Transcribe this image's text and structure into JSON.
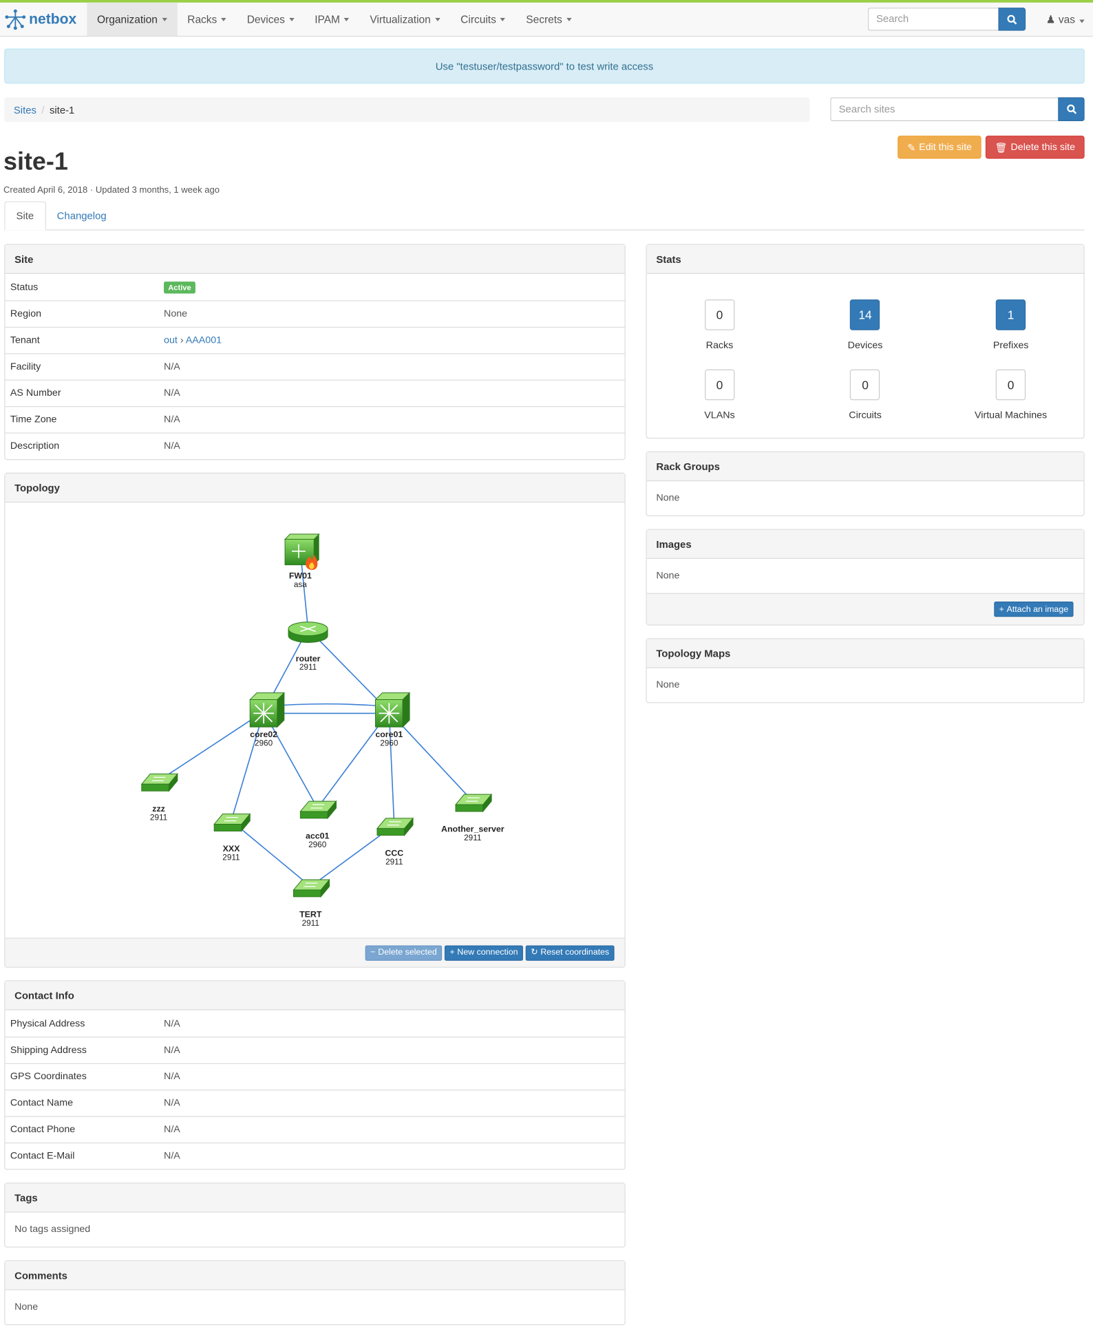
{
  "nav": {
    "brand": "netbox",
    "items": [
      "Organization",
      "Racks",
      "Devices",
      "IPAM",
      "Virtualization",
      "Circuits",
      "Secrets"
    ],
    "search_placeholder": "Search",
    "user": "vas"
  },
  "alert": "Use \"testuser/testpassword\" to test write access",
  "breadcrumb": {
    "root": "Sites",
    "current": "site-1"
  },
  "site_search_placeholder": "Search sites",
  "title": "site-1",
  "created": "Created April 6, 2018 · Updated 3 months, 1 week ago",
  "actions": {
    "edit": "Edit this site",
    "delete": "Delete this site"
  },
  "tabs": [
    "Site",
    "Changelog"
  ],
  "site": {
    "header": "Site",
    "rows": [
      {
        "k": "Status",
        "v": "Active"
      },
      {
        "k": "Region",
        "v": "None"
      },
      {
        "k": "Tenant",
        "v1": "out",
        "v2": "AAA001"
      },
      {
        "k": "Facility",
        "v": "N/A"
      },
      {
        "k": "AS Number",
        "v": "N/A"
      },
      {
        "k": "Time Zone",
        "v": "N/A"
      },
      {
        "k": "Description",
        "v": "N/A"
      }
    ]
  },
  "topology": {
    "header": "Topology",
    "nodes": [
      {
        "name": "FW01",
        "model": "asa"
      },
      {
        "name": "router",
        "model": "2911"
      },
      {
        "name": "core02",
        "model": "2960"
      },
      {
        "name": "core01",
        "model": "2960"
      },
      {
        "name": "zzz",
        "model": "2911"
      },
      {
        "name": "XXX",
        "model": "2911"
      },
      {
        "name": "acc01",
        "model": "2960"
      },
      {
        "name": "CCC",
        "model": "2911"
      },
      {
        "name": "Another_server",
        "model": "2911"
      },
      {
        "name": "TERT",
        "model": "2911"
      }
    ],
    "buttons": {
      "delete": "Delete selected",
      "connect": "New connection",
      "reset": "Reset coordinates"
    }
  },
  "contact": {
    "header": "Contact Info",
    "rows": [
      {
        "k": "Physical Address",
        "v": "N/A"
      },
      {
        "k": "Shipping Address",
        "v": "N/A"
      },
      {
        "k": "GPS Coordinates",
        "v": "N/A"
      },
      {
        "k": "Contact Name",
        "v": "N/A"
      },
      {
        "k": "Contact Phone",
        "v": "N/A"
      },
      {
        "k": "Contact E-Mail",
        "v": "N/A"
      }
    ]
  },
  "tags": {
    "header": "Tags",
    "body": "No tags assigned"
  },
  "comments": {
    "header": "Comments",
    "body": "None"
  },
  "stats": {
    "header": "Stats",
    "items": [
      {
        "value": "0",
        "label": "Racks",
        "highlight": false
      },
      {
        "value": "14",
        "label": "Devices",
        "highlight": true
      },
      {
        "value": "1",
        "label": "Prefixes",
        "highlight": true
      },
      {
        "value": "0",
        "label": "VLANs",
        "highlight": false
      },
      {
        "value": "0",
        "label": "Circuits",
        "highlight": false
      },
      {
        "value": "0",
        "label": "Virtual Machines",
        "highlight": false
      }
    ]
  },
  "rack_groups": {
    "header": "Rack Groups",
    "body": "None"
  },
  "images": {
    "header": "Images",
    "body": "None",
    "button": "Attach an image"
  },
  "topology_maps": {
    "header": "Topology Maps",
    "body": "None"
  },
  "colors": {
    "primary": "#337ab7",
    "success": "#5cb85c",
    "warning": "#f0ad4e",
    "danger": "#d9534f",
    "accent": "#9ad045"
  }
}
